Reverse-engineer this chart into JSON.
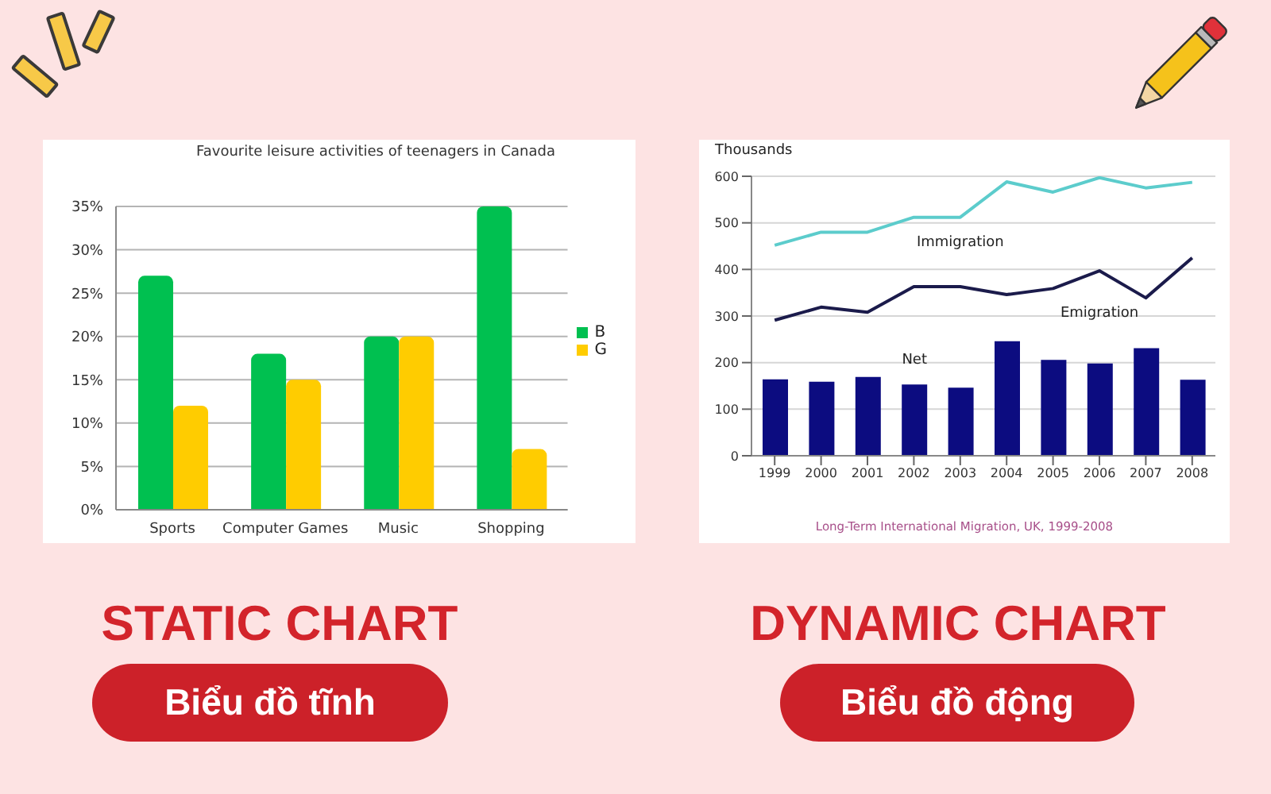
{
  "chart_data": [
    {
      "type": "bar",
      "title": "Favourite leisure activities of teenagers in Canada",
      "categories": [
        "Sports",
        "Computer Games",
        "Music",
        "Shopping"
      ],
      "series": [
        {
          "name": "B",
          "color": "#00c050",
          "values": [
            27,
            18,
            20,
            35
          ]
        },
        {
          "name": "G",
          "color": "#ffcc00",
          "values": [
            12,
            15,
            20,
            7
          ]
        }
      ],
      "ylim": [
        0,
        35
      ],
      "yticks": [
        {
          "value": 0,
          "label": "0%"
        },
        {
          "value": 5,
          "label": "5%"
        },
        {
          "value": 10,
          "label": "10%"
        },
        {
          "value": 15,
          "label": "15%"
        },
        {
          "value": 20,
          "label": "20%"
        },
        {
          "value": 25,
          "label": "25%"
        },
        {
          "value": 30,
          "label": "30%"
        },
        {
          "value": 35,
          "label": "35%"
        }
      ],
      "grid": "y",
      "legend": "right",
      "annotations": [
        "STATIC CHART",
        "Biểu đồ tĩnh"
      ]
    },
    {
      "type": "bar",
      "ylabel": "Thousands",
      "categories": [
        "1999",
        "2000",
        "2001",
        "2002",
        "2003",
        "2004",
        "2005",
        "2006",
        "2007",
        "2008"
      ],
      "series": [
        {
          "name": "Immigration",
          "type": "line",
          "color": "#5ccccc",
          "values": [
            452,
            480,
            480,
            512,
            512,
            588,
            566,
            597,
            575,
            587
          ]
        },
        {
          "name": "Emigration",
          "type": "line",
          "color": "#1b1b4b",
          "values": [
            291,
            319,
            308,
            363,
            363,
            346,
            359,
            397,
            339,
            425
          ]
        },
        {
          "name": "Net",
          "type": "bar",
          "color": "#0c0c80",
          "values": [
            164,
            159,
            169,
            153,
            146,
            246,
            206,
            198,
            231,
            163
          ]
        }
      ],
      "ylim": [
        0,
        600
      ],
      "yticks": [
        0,
        100,
        200,
        300,
        400,
        500,
        600
      ],
      "grid": "y",
      "marker": "none",
      "line_style": "solid",
      "annotations": [
        "Long-Term International Migration, UK, 1999-2008",
        "DYNAMIC CHART",
        "Biểu đồ động"
      ]
    }
  ]
}
